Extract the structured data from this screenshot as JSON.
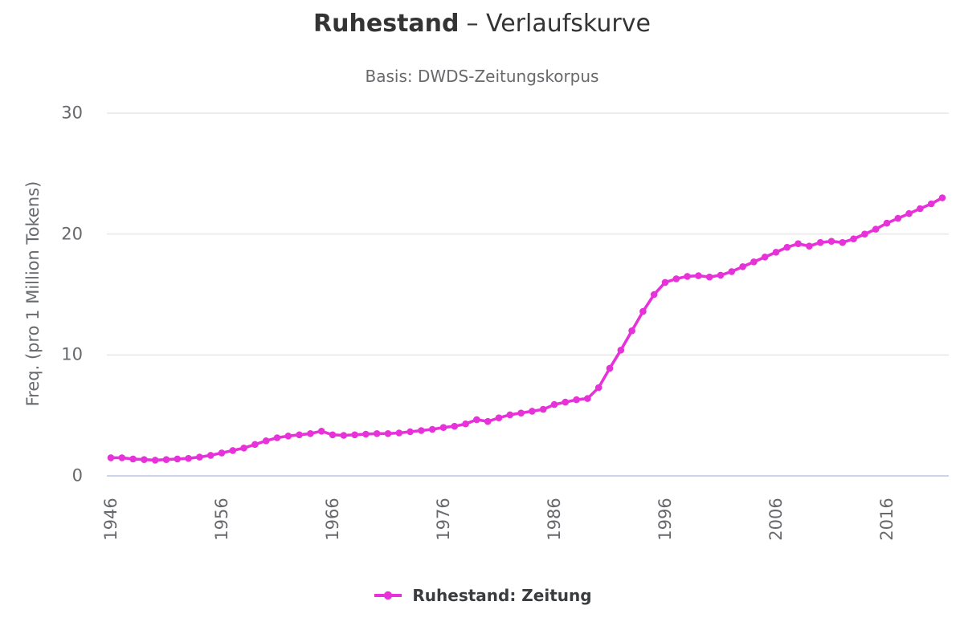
{
  "header": {
    "title_bold": "Ruhestand",
    "title_regular": "– Verlaufskurve",
    "subtitle": "Basis: DWDS-Zeitungskorpus"
  },
  "legend": {
    "label": "Ruhestand: Zeitung"
  },
  "colors": {
    "series": "#e632d8",
    "grid": "#e7e7e7",
    "axis_line": "#ccd5ea",
    "title_text": "#343434",
    "subtitle_text": "#67696c",
    "axis_text": "#67696c",
    "legend_text": "#3a3d40"
  },
  "chart_data": {
    "type": "line",
    "title": "Ruhestand – Verlaufskurve",
    "subtitle": "Basis: DWDS-Zeitungskorpus",
    "xlabel": "",
    "ylabel": "Freq. (pro 1 Million Tokens)",
    "x_ticks": [
      1946,
      1956,
      1966,
      1976,
      1986,
      1996,
      2006,
      2016
    ],
    "y_ticks": [
      0,
      10,
      20,
      30
    ],
    "xlim": [
      1946,
      2021
    ],
    "ylim": [
      0,
      30
    ],
    "grid": "horizontal",
    "legend_position": "bottom",
    "series": [
      {
        "name": "Ruhestand: Zeitung",
        "color": "#e632d8",
        "x": [
          1946,
          1947,
          1948,
          1949,
          1950,
          1951,
          1952,
          1953,
          1954,
          1955,
          1956,
          1957,
          1958,
          1959,
          1960,
          1961,
          1962,
          1963,
          1964,
          1965,
          1966,
          1967,
          1968,
          1969,
          1970,
          1971,
          1972,
          1973,
          1974,
          1975,
          1976,
          1977,
          1978,
          1979,
          1980,
          1981,
          1982,
          1983,
          1984,
          1985,
          1986,
          1987,
          1988,
          1989,
          1990,
          1991,
          1992,
          1993,
          1994,
          1995,
          1996,
          1997,
          1998,
          1999,
          2000,
          2001,
          2002,
          2003,
          2004,
          2005,
          2006,
          2007,
          2008,
          2009,
          2010,
          2011,
          2012,
          2013,
          2014,
          2015,
          2016,
          2017,
          2018,
          2019,
          2020,
          2021
        ],
        "values": [
          1.5,
          1.5,
          1.4,
          1.35,
          1.3,
          1.35,
          1.4,
          1.45,
          1.55,
          1.7,
          1.9,
          2.1,
          2.3,
          2.6,
          2.9,
          3.15,
          3.3,
          3.4,
          3.5,
          3.7,
          3.4,
          3.35,
          3.4,
          3.45,
          3.5,
          3.5,
          3.55,
          3.65,
          3.75,
          3.85,
          4.0,
          4.1,
          4.3,
          4.65,
          4.5,
          4.8,
          5.05,
          5.2,
          5.35,
          5.5,
          5.9,
          6.1,
          6.3,
          6.4,
          7.3,
          8.9,
          10.4,
          12.0,
          13.6,
          15.0,
          16.0,
          16.3,
          16.5,
          16.55,
          16.45,
          16.6,
          16.9,
          17.3,
          17.7,
          18.1,
          18.5,
          18.9,
          19.2,
          19.0,
          19.3,
          19.4,
          19.3,
          19.6,
          20.0,
          20.4,
          20.9,
          21.3,
          21.7,
          22.1,
          22.5,
          23.0
        ]
      }
    ]
  }
}
